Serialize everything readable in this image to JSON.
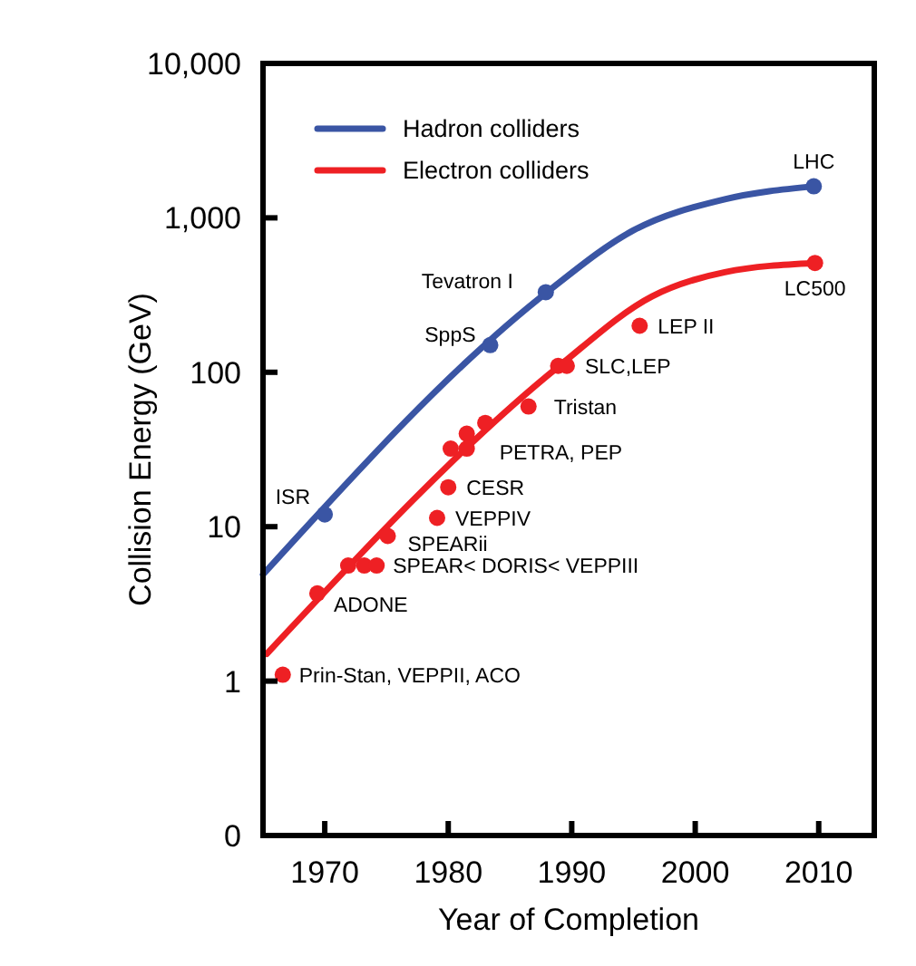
{
  "chart_data": {
    "type": "line",
    "xlabel": "Year of Completion",
    "ylabel": "Collision Energy (GeV)",
    "log": "y",
    "xlim": [
      1965,
      2014.5
    ],
    "xticks": [
      1970,
      1980,
      1990,
      2000,
      2010
    ],
    "ylim": [
      0.1,
      10000
    ],
    "yticks": [
      {
        "value": 0.1,
        "label": "0"
      },
      1,
      10,
      100,
      {
        "value": 1000,
        "label": "1,000"
      },
      {
        "value": 10000,
        "label": "10,000"
      }
    ],
    "legend": "top left",
    "grid": false,
    "series": [
      {
        "name": "Hadron colliders",
        "color": "#3a55a4",
        "marker": "none",
        "x": [
          1965,
          1988,
          1995,
          2002.4,
          2009.6
        ],
        "values": [
          4.9,
          330,
          830,
          1320,
          1600
        ]
      },
      {
        "name": "Electron colliders",
        "color": "#ee2024",
        "marker": "none",
        "x": [
          1965.3,
          1989,
          1996.5,
          2002.4,
          2009.7
        ],
        "values": [
          1.5,
          110,
          310,
          445,
          510
        ]
      },
      {
        "type": "scatter",
        "color": "#3a55a4",
        "marker": "circle",
        "x": [
          1970,
          1983.4,
          1987.9,
          2009.6
        ],
        "values": [
          12,
          150,
          330,
          1600
        ]
      },
      {
        "type": "scatter",
        "color": "#ee2024",
        "marker": "circle",
        "x": [
          1966.6,
          1969.4,
          1971.9,
          1973.2,
          1974.2,
          1975.1,
          1979.1,
          1980,
          1980.2,
          1981.5,
          1981.5,
          1983,
          1986.5,
          1988.9,
          1989.6,
          1995.5,
          2009.7
        ],
        "values": [
          1.1,
          3.7,
          5.6,
          5.6,
          5.6,
          8.7,
          11.4,
          18,
          32,
          40,
          32,
          47,
          60,
          110,
          110,
          200,
          510
        ]
      }
    ],
    "annotations": [
      {
        "text": "ISR",
        "x": 1970,
        "y": 12
      },
      {
        "text": "SppS",
        "x": 1983.4,
        "y": 150
      },
      {
        "text": "Tevatron I",
        "x": 1987.9,
        "y": 330
      },
      {
        "text": "LHC",
        "x": 2009.6,
        "y": 1600
      },
      {
        "text": "LC500",
        "x": 2009.7,
        "y": 510
      },
      {
        "text": "LEP II",
        "x": 1995.5,
        "y": 200
      },
      {
        "text": "SLC,LEP",
        "x": 1989.6,
        "y": 110
      },
      {
        "text": "Tristan",
        "x": 1986.5,
        "y": 60
      },
      {
        "text": "PETRA, PEP",
        "x": 1981.5,
        "y": 32
      },
      {
        "text": "CESR",
        "x": 1980,
        "y": 18
      },
      {
        "text": "VEPPIV",
        "x": 1979.1,
        "y": 11.4
      },
      {
        "text": "SPEARii",
        "x": 1975.1,
        "y": 8.7
      },
      {
        "text": "SPEAR< DORIS< VEPPIII",
        "x": 1974.2,
        "y": 5.6
      },
      {
        "text": "ADONE",
        "x": 1969.4,
        "y": 3.7
      },
      {
        "text": "Prin-Stan, VEPPII, ACO",
        "x": 1966.6,
        "y": 1.1
      }
    ]
  }
}
